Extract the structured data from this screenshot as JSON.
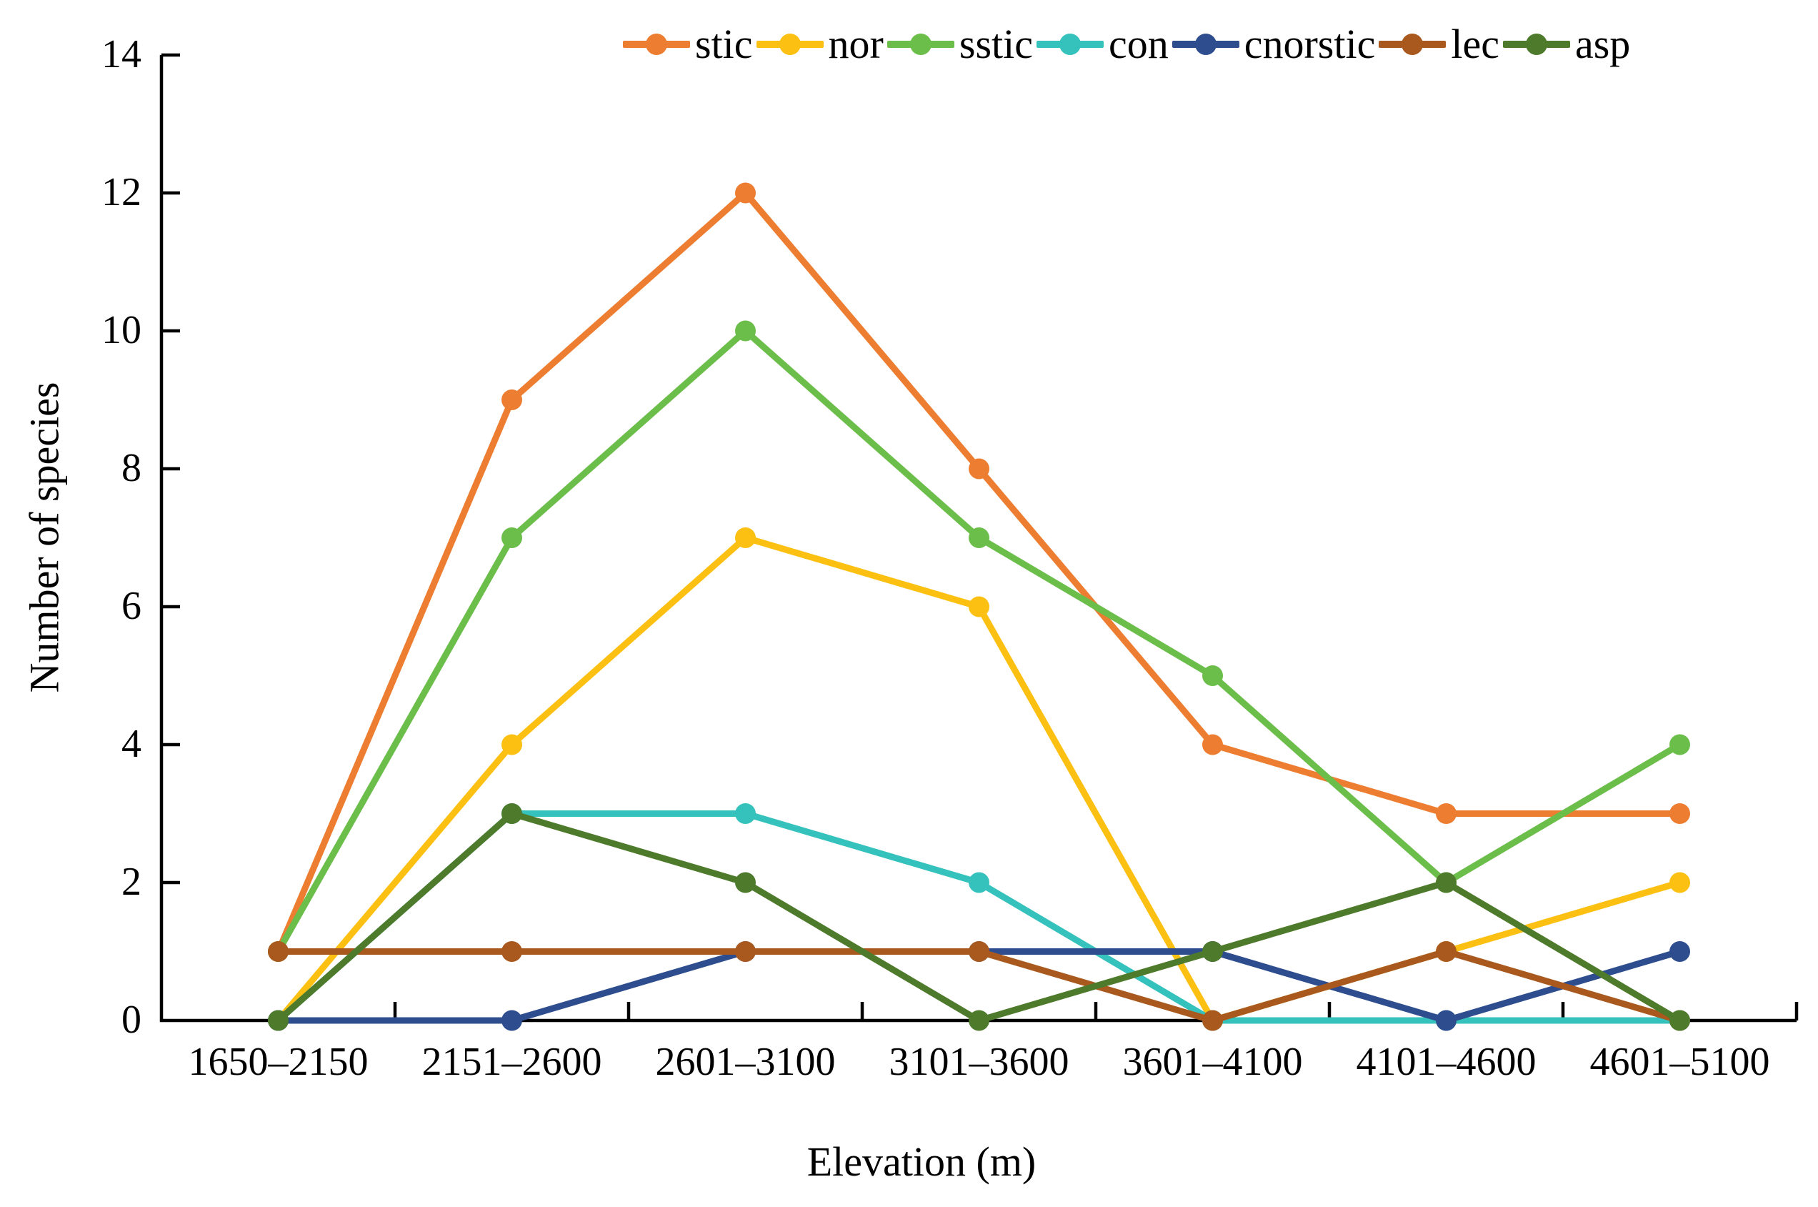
{
  "chart_data": {
    "type": "line",
    "xlabel": "Elevation (m)",
    "ylabel": "Number of species",
    "categories": [
      "1650–2150",
      "2151–2600",
      "2601–3100",
      "3101–3600",
      "3601–4100",
      "4101–4600",
      "4601–5100"
    ],
    "ylim": [
      0,
      14
    ],
    "ytick_step": 2,
    "grid": false,
    "legend_position": "top",
    "axis_color": "#000000",
    "series": [
      {
        "name": "stic",
        "color": "#ED7D31",
        "values": [
          1,
          9,
          12,
          8,
          4,
          3,
          3
        ]
      },
      {
        "name": "nor",
        "color": "#FBC011",
        "values": [
          0,
          4,
          7,
          6,
          0,
          1,
          2
        ]
      },
      {
        "name": "sstic",
        "color": "#6CBE4B",
        "values": [
          1,
          7,
          10,
          7,
          5,
          2,
          4
        ]
      },
      {
        "name": "con",
        "color": "#35C2BC",
        "values": [
          0,
          3,
          3,
          2,
          0,
          0,
          0
        ]
      },
      {
        "name": "cnorstic",
        "color": "#2E4D8E",
        "values": [
          0,
          0,
          1,
          1,
          1,
          0,
          1
        ]
      },
      {
        "name": "lec",
        "color": "#A9591D",
        "values": [
          1,
          1,
          1,
          1,
          0,
          1,
          0
        ]
      },
      {
        "name": "asp",
        "color": "#4E7A2B",
        "values": [
          0,
          3,
          2,
          0,
          1,
          2,
          0
        ]
      }
    ]
  }
}
